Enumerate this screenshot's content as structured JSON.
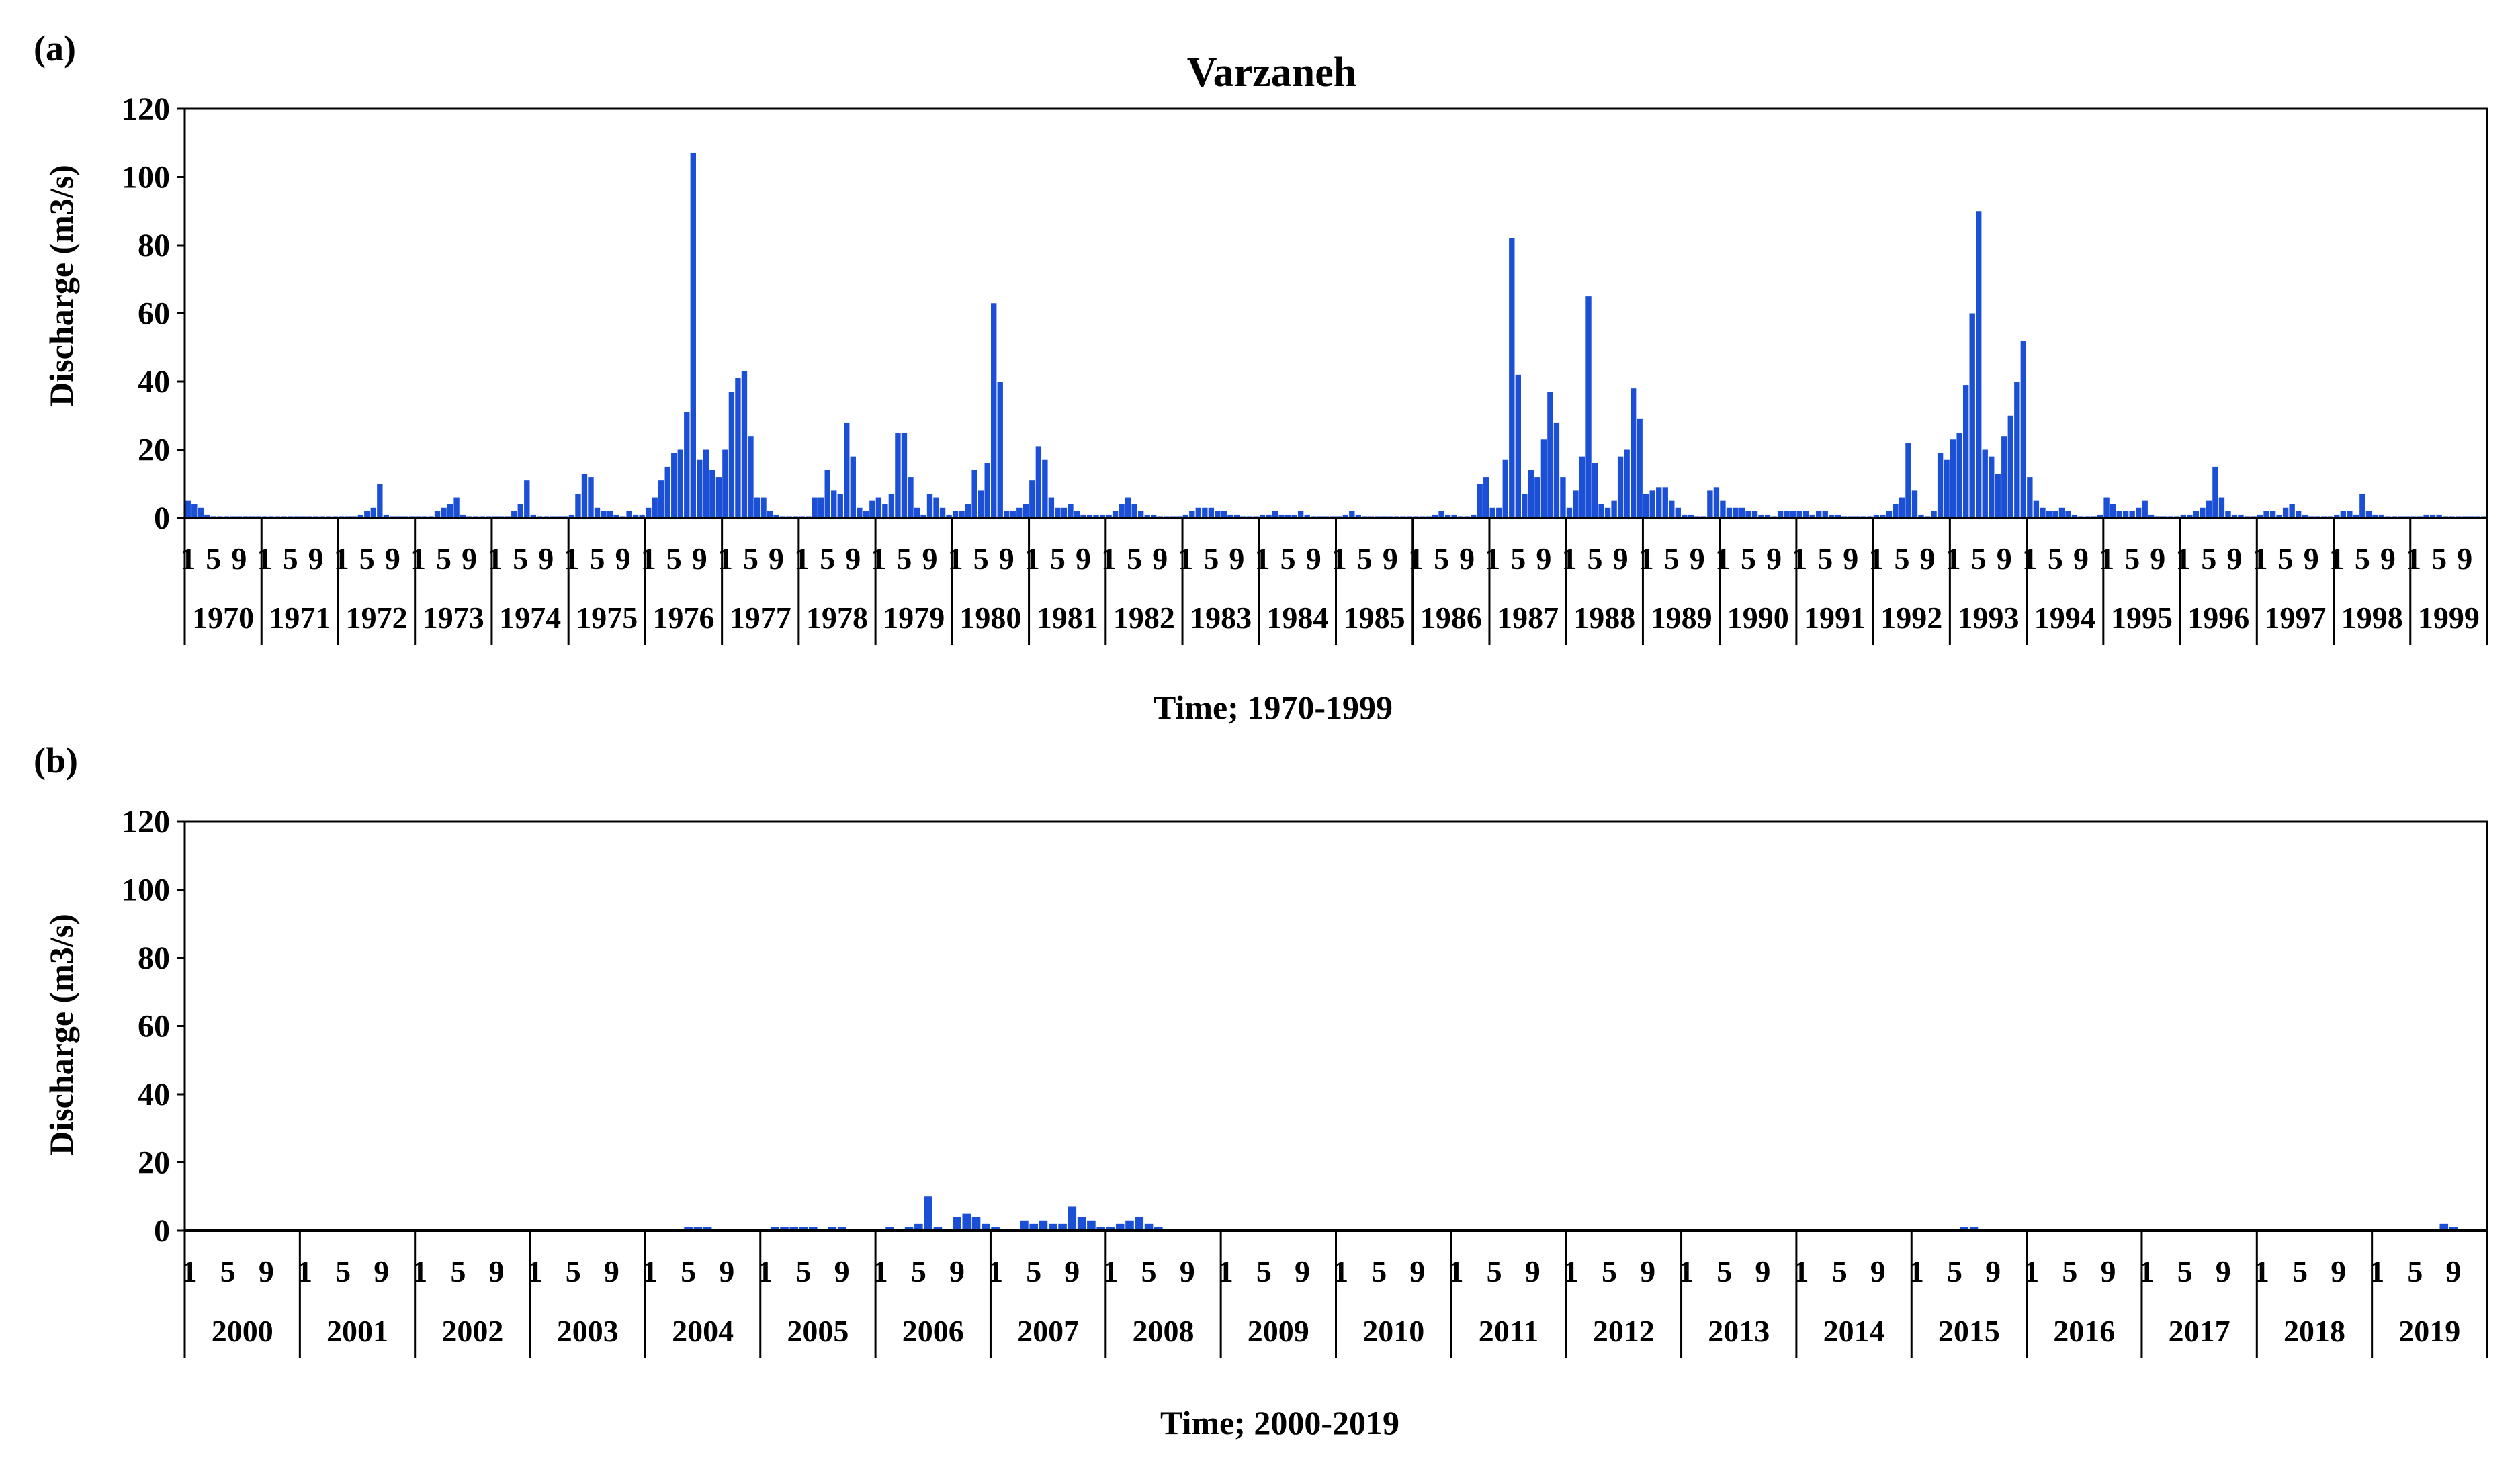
{
  "chart_data": [
    {
      "type": "bar",
      "panel_label": "(a)",
      "title": "Varzaneh",
      "xlabel": "Time; 1970-1999",
      "ylabel": "Discharge  (m3/s)",
      "ylim": [
        0,
        120
      ],
      "yticks": [
        "0",
        "20",
        "40",
        "60",
        "80",
        "100",
        "120"
      ],
      "month_tick_labels": [
        "1",
        "5",
        "9"
      ],
      "years": [
        "1970",
        "1971",
        "1972",
        "1973",
        "1974",
        "1975",
        "1976",
        "1977",
        "1978",
        "1979",
        "1980",
        "1981",
        "1982",
        "1983",
        "1984",
        "1985",
        "1986",
        "1987",
        "1988",
        "1989",
        "1990",
        "1991",
        "1992",
        "1993",
        "1994",
        "1995",
        "1996",
        "1997",
        "1998",
        "1999"
      ],
      "bar_color": "#1a4fd6",
      "grid": false,
      "monthly_values": [
        [
          5,
          4,
          3,
          1,
          0.5,
          0.5,
          0.5,
          0.5,
          0.5,
          0.5,
          0.5,
          0.5
        ],
        [
          0.5,
          0.5,
          0.5,
          0.5,
          0.5,
          0.5,
          0.5,
          0.5,
          0.5,
          0.5,
          0.5,
          0.5
        ],
        [
          0.5,
          0.5,
          0.5,
          1,
          2,
          3,
          10,
          1,
          0.5,
          0.5,
          0.5,
          0.5
        ],
        [
          0.5,
          0.5,
          0.5,
          2,
          3,
          4,
          6,
          1,
          0.5,
          0.5,
          0.5,
          0.5
        ],
        [
          0.5,
          0.5,
          0.5,
          2,
          4,
          11,
          1,
          0.5,
          0.5,
          0.5,
          0.5,
          0.5
        ],
        [
          1,
          7,
          13,
          12,
          3,
          2,
          2,
          1,
          0.5,
          2,
          1,
          1
        ],
        [
          3,
          6,
          11,
          15,
          19,
          20,
          31,
          107,
          17,
          20,
          14,
          12
        ],
        [
          20,
          37,
          41,
          43,
          24,
          6,
          6,
          2,
          1,
          0.5,
          0.5,
          0.5
        ],
        [
          0.5,
          0.5,
          6,
          6,
          14,
          8,
          7,
          28,
          18,
          3,
          2,
          5
        ],
        [
          6,
          4,
          7,
          25,
          25,
          12,
          3,
          1,
          7,
          6,
          3,
          1
        ],
        [
          2,
          2,
          4,
          14,
          8,
          16,
          63,
          40,
          2,
          2,
          3,
          4
        ],
        [
          11,
          21,
          17,
          6,
          3,
          3,
          4,
          2,
          1,
          1,
          1,
          1
        ],
        [
          1,
          2,
          4,
          6,
          4,
          2,
          1,
          1,
          0.5,
          0.5,
          0.5,
          0.5
        ],
        [
          1,
          2,
          3,
          3,
          3,
          2,
          2,
          1,
          1,
          0.5,
          0.5,
          0.5
        ],
        [
          1,
          1,
          2,
          1,
          1,
          1,
          2,
          1,
          0.5,
          0.5,
          0.5,
          0.5
        ],
        [
          0.5,
          1,
          2,
          1,
          0.5,
          0.5,
          0.5,
          0.5,
          0.5,
          0.5,
          0.5,
          0.5
        ],
        [
          0.5,
          0.5,
          0.5,
          1,
          2,
          1,
          1,
          0.5,
          0.5,
          1,
          10,
          12
        ],
        [
          3,
          3,
          17,
          82,
          42,
          7,
          14,
          12,
          23,
          37,
          28,
          12
        ],
        [
          3,
          8,
          18,
          65,
          16,
          4,
          3,
          5,
          18,
          20,
          38,
          29
        ],
        [
          7,
          8,
          9,
          9,
          5,
          3,
          1,
          1,
          0.5,
          0.5,
          8,
          9
        ],
        [
          5,
          3,
          3,
          3,
          2,
          2,
          1,
          1,
          0.5,
          2,
          2,
          2
        ],
        [
          2,
          2,
          1,
          2,
          2,
          1,
          1,
          0.5,
          0.5,
          0.5,
          0.5,
          0.5
        ],
        [
          1,
          1,
          2,
          4,
          6,
          22,
          8,
          1,
          0.5,
          2,
          19,
          17
        ],
        [
          23,
          25,
          39,
          60,
          90,
          20,
          18,
          13,
          24,
          30,
          40,
          52
        ],
        [
          12,
          5,
          3,
          2,
          2,
          3,
          2,
          1,
          0.5,
          0.5,
          0.5,
          1
        ],
        [
          6,
          4,
          2,
          2,
          2,
          3,
          5,
          1,
          0.5,
          0.5,
          0.5,
          0.5
        ],
        [
          1,
          1,
          2,
          3,
          5,
          15,
          6,
          2,
          1,
          1,
          0.5,
          0.5
        ],
        [
          1,
          2,
          2,
          1,
          3,
          4,
          2,
          1,
          0.5,
          0.5,
          0.5,
          0.5
        ],
        [
          1,
          2,
          2,
          1,
          7,
          2,
          1,
          1,
          0.5,
          0.5,
          0.5,
          0.5
        ],
        [
          0.5,
          0.5,
          1,
          1,
          1,
          0.5,
          0.5,
          0.5,
          0.5,
          0.5,
          0.5,
          0.5
        ]
      ]
    },
    {
      "type": "bar",
      "panel_label": "(b)",
      "title": "",
      "xlabel": "Time; 2000-2019",
      "ylabel": "Discharge  (m3/s)",
      "ylim": [
        0,
        120
      ],
      "yticks": [
        "0",
        "20",
        "40",
        "60",
        "80",
        "100",
        "120"
      ],
      "month_tick_labels": [
        "1",
        "5",
        "9"
      ],
      "years": [
        "2000",
        "2001",
        "2002",
        "2003",
        "2004",
        "2005",
        "2006",
        "2007",
        "2008",
        "2009",
        "2010",
        "2011",
        "2012",
        "2013",
        "2014",
        "2015",
        "2016",
        "2017",
        "2018",
        "2019"
      ],
      "bar_color": "#1a4fd6",
      "grid": false,
      "monthly_values": [
        [
          0.5,
          0.5,
          0.5,
          0.5,
          0.5,
          0.5,
          0.5,
          0.5,
          0.5,
          0.5,
          0.5,
          0.5
        ],
        [
          0.5,
          0.5,
          0.5,
          0.5,
          0.5,
          0.5,
          0.5,
          0.5,
          0.5,
          0.5,
          0.5,
          0.5
        ],
        [
          0.5,
          0.5,
          0.5,
          0.5,
          0.5,
          0.5,
          0.5,
          0.5,
          0.5,
          0.5,
          0.5,
          0.5
        ],
        [
          0.5,
          0.5,
          0.5,
          0.5,
          0.5,
          0.5,
          0.5,
          0.5,
          0.5,
          0.5,
          0.5,
          0.5
        ],
        [
          0.5,
          0.5,
          0.5,
          0.5,
          1,
          1,
          1,
          0.5,
          0.5,
          0.5,
          0.5,
          0.5
        ],
        [
          0.5,
          1,
          1,
          1,
          1,
          1,
          0.5,
          1,
          1,
          0.5,
          0.5,
          0.5
        ],
        [
          0.5,
          1,
          0.5,
          1,
          2,
          10,
          1,
          0.5,
          4,
          5,
          4,
          2
        ],
        [
          1,
          0.5,
          0.5,
          3,
          2,
          3,
          2,
          2,
          7,
          4,
          3,
          1
        ],
        [
          1,
          2,
          3,
          4,
          2,
          1,
          0.5,
          0.5,
          0.5,
          0.5,
          0.5,
          0.5
        ],
        [
          0.5,
          0.5,
          0.5,
          0.5,
          0.5,
          0.5,
          0.5,
          0.5,
          0.5,
          0.5,
          0.5,
          0.5
        ],
        [
          0.5,
          0.5,
          0.5,
          0.5,
          0.5,
          0.5,
          0.5,
          0.5,
          0.5,
          0.5,
          0.5,
          0.5
        ],
        [
          0.5,
          0.5,
          0.5,
          0.5,
          0.5,
          0.5,
          0.5,
          0.5,
          0.5,
          0.5,
          0.5,
          0.5
        ],
        [
          0.5,
          0.5,
          0.5,
          0.5,
          0.5,
          0.5,
          0.5,
          0.5,
          0.5,
          0.5,
          0.5,
          0.5
        ],
        [
          0.5,
          0.5,
          0.5,
          0.5,
          0.5,
          0.5,
          0.5,
          0.5,
          0.5,
          0.5,
          0.5,
          0.5
        ],
        [
          0.5,
          0.5,
          0.5,
          0.5,
          0.5,
          0.5,
          0.5,
          0.5,
          0.5,
          0.5,
          0.5,
          0.5
        ],
        [
          0.5,
          0.5,
          0.5,
          0.5,
          0.5,
          1,
          1,
          0.5,
          0.5,
          0.5,
          0.5,
          0.5
        ],
        [
          0.5,
          0.5,
          0.5,
          0.5,
          0.5,
          0.5,
          0.5,
          0.5,
          0.5,
          0.5,
          0.5,
          0.5
        ],
        [
          0.5,
          0.5,
          0.5,
          0.5,
          0.5,
          0.5,
          0.5,
          0.5,
          0.5,
          0.5,
          0.5,
          0.5
        ],
        [
          0.5,
          0.5,
          0.5,
          0.5,
          0.5,
          0.5,
          0.5,
          0.5,
          0.5,
          0.5,
          0.5,
          0.5
        ],
        [
          0.5,
          0.5,
          0.5,
          0.5,
          0.5,
          0.5,
          0.5,
          2,
          1,
          0.5,
          0.5,
          0.5
        ]
      ]
    }
  ]
}
